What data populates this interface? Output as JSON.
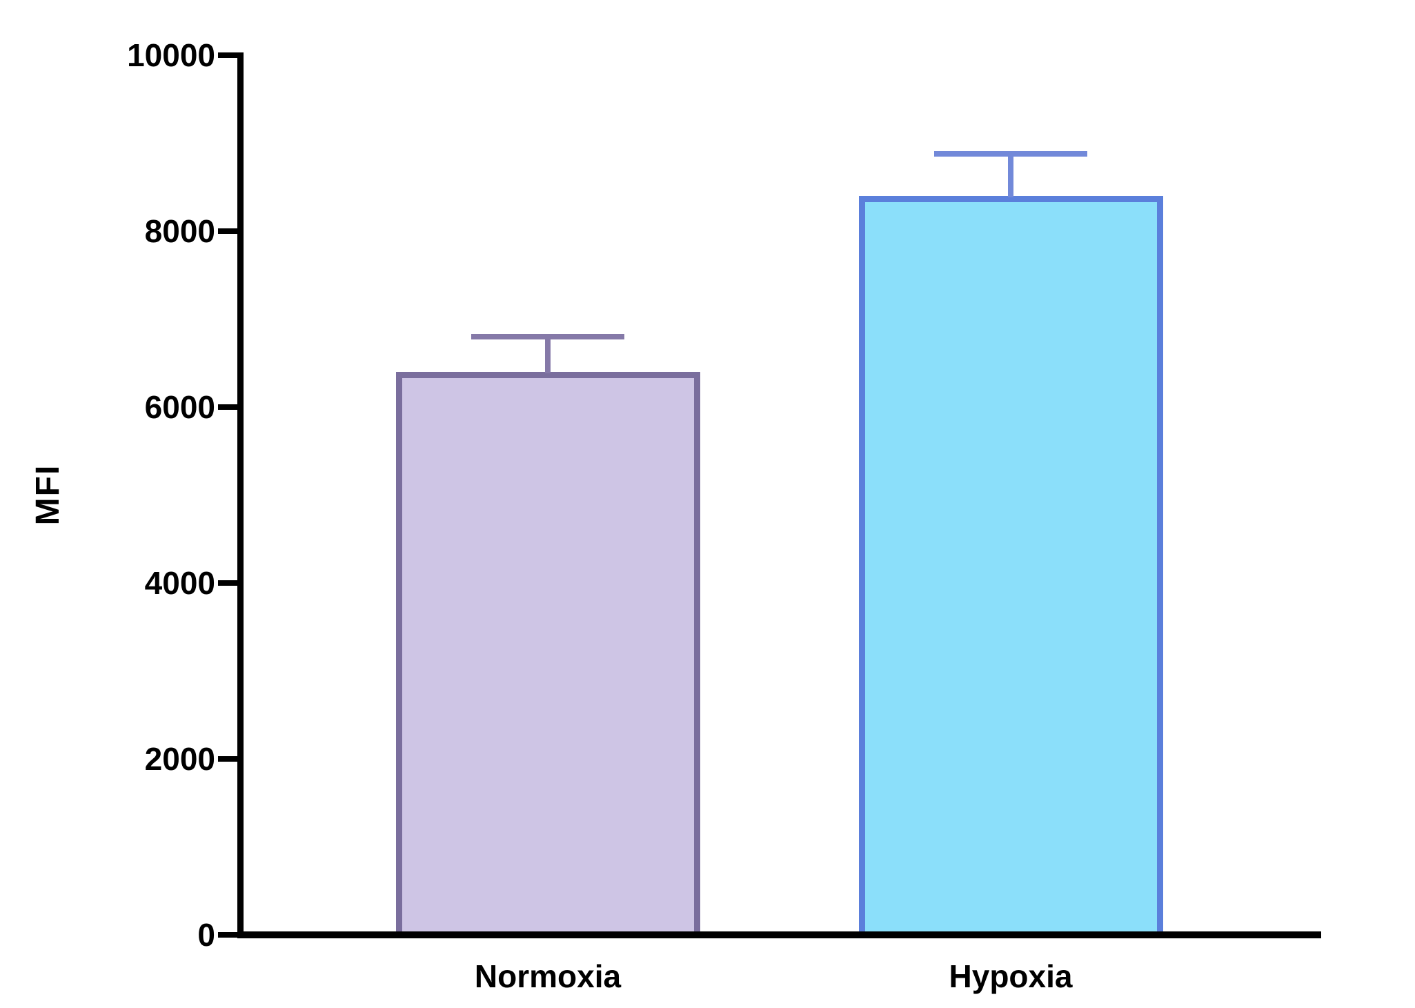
{
  "figure": {
    "background_color": "#ffffff",
    "axis_color": "#000000",
    "text_color": "#000000"
  },
  "chart_data": {
    "type": "bar",
    "title": "",
    "xlabel": "",
    "ylabel": "MFI",
    "categories": [
      "Normoxia",
      "Hypoxia"
    ],
    "values": [
      6400,
      8400
    ],
    "errors_plus": [
      400,
      475
    ],
    "ylim": [
      0,
      10000
    ],
    "yticks": [
      0,
      2000,
      4000,
      6000,
      8000,
      10000
    ],
    "ytick_labels": [
      "0",
      "2000",
      "4000",
      "6000",
      "8000",
      "10000"
    ],
    "grid": false,
    "legend": false,
    "error_bar_style": "upper-only-with-cap",
    "series_styles": [
      {
        "name": "Normoxia",
        "fill": "#CEC5E5",
        "border": "#7A6E9D",
        "error": "#8579A8"
      },
      {
        "name": "Hypoxia",
        "fill": "#8BDFFA",
        "border": "#5B7FDB",
        "error": "#7289D9"
      }
    ]
  }
}
